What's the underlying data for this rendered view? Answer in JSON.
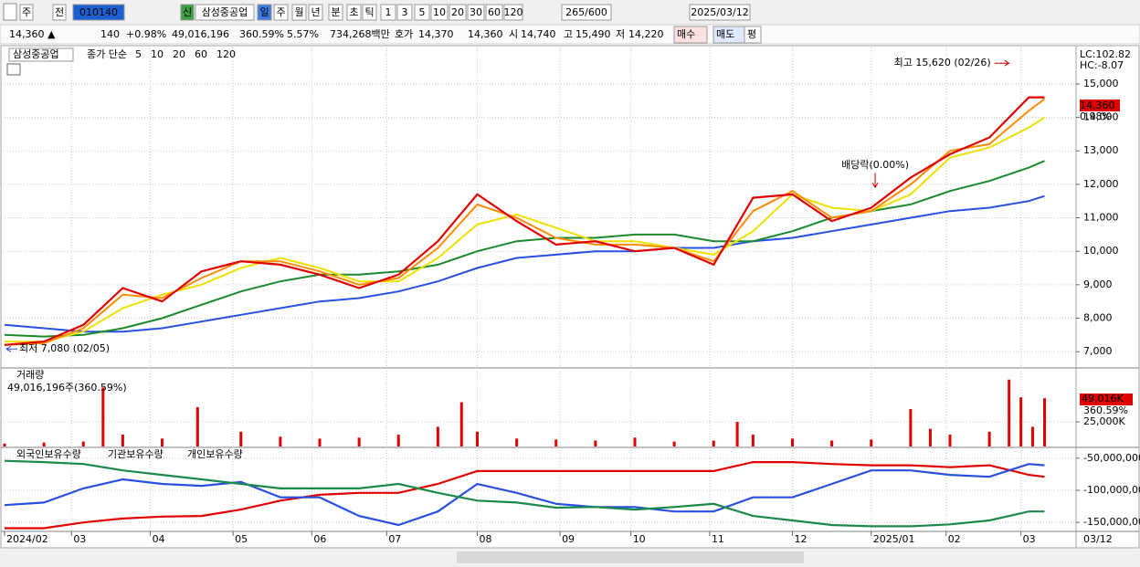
{
  "toolbar": {
    "items": [
      "주",
      "전",
      "010140",
      "신",
      "삼성중공업",
      "일",
      "주",
      "월",
      "년",
      "분",
      "초",
      "틱",
      "1",
      "3",
      "5",
      "10",
      "20",
      "30",
      "60",
      "120",
      "265/600",
      "2025/03/12"
    ]
  },
  "quote": {
    "items": [
      {
        "text": "14,360 ▲",
        "color": "#e00000"
      },
      {
        "text": "140",
        "color": "#e00000"
      },
      {
        "text": "+0.98%",
        "color": "#e00000"
      },
      {
        "text": "49,016,196",
        "color": "#000000"
      },
      {
        "text": "360.59%",
        "color": "#e00000"
      },
      {
        "text": "5.57%",
        "color": "#000000"
      },
      {
        "text": "734,268백만",
        "color": "#000000"
      },
      {
        "text": "호가",
        "color": "#000000"
      },
      {
        "text": "14,370",
        "color": "#e00000"
      },
      {
        "text": "14,360",
        "color": "#e00000"
      },
      {
        "text": "시",
        "color": "#000000"
      },
      {
        "text": "14,740",
        "color": "#e00000"
      },
      {
        "text": "고",
        "color": "#000000"
      },
      {
        "text": "15,490",
        "color": "#e00000"
      },
      {
        "text": "저",
        "color": "#000000"
      },
      {
        "text": "14,220",
        "color": "#000000"
      }
    ],
    "buttons": [
      "매수",
      "매도",
      "평"
    ]
  },
  "chart_data": [
    {
      "type": "line",
      "title": "삼성중공업",
      "legend_prefix": "종가 단순",
      "xlim": [
        0,
        272
      ],
      "ylim": [
        6540,
        16090
      ],
      "yticks": [
        {
          "value": 7000,
          "label": "7,000"
        },
        {
          "value": 8000,
          "label": "8,000"
        },
        {
          "value": 9000,
          "label": "9,000"
        },
        {
          "value": 10000,
          "label": "10,000"
        },
        {
          "value": 11000,
          "label": "11,000"
        },
        {
          "value": 12000,
          "label": "12,000"
        },
        {
          "value": 13000,
          "label": "13,000"
        },
        {
          "value": 14000,
          "label": "14,000"
        },
        {
          "value": 15000,
          "label": "15,000"
        }
      ],
      "x": [
        0,
        10,
        20,
        30,
        40,
        50,
        60,
        70,
        80,
        90,
        100,
        110,
        120,
        130,
        140,
        150,
        160,
        170,
        180,
        190,
        200,
        210,
        220,
        230,
        240,
        250,
        260,
        264
      ],
      "series": [
        {
          "name": "5",
          "color": "#e00000",
          "values": [
            7200,
            7300,
            7800,
            8900,
            8500,
            9400,
            9700,
            9600,
            9300,
            8900,
            9300,
            10300,
            11700,
            10900,
            10200,
            10300,
            10000,
            10100,
            9600,
            11600,
            11700,
            10900,
            11300,
            12200,
            12900,
            13400,
            14600,
            14600
          ]
        },
        {
          "name": "10",
          "color": "#ff8c00",
          "values": [
            7200,
            7250,
            7700,
            8700,
            8600,
            9200,
            9700,
            9700,
            9400,
            9000,
            9200,
            10100,
            11400,
            11000,
            10400,
            10200,
            10200,
            10100,
            9700,
            11200,
            11800,
            11000,
            11200,
            12000,
            13000,
            13200,
            14200,
            14550
          ]
        },
        {
          "name": "20",
          "color": "#f0e000",
          "values": [
            7300,
            7300,
            7600,
            8300,
            8700,
            9000,
            9500,
            9800,
            9500,
            9100,
            9100,
            9800,
            10800,
            11100,
            10700,
            10300,
            10300,
            10100,
            9900,
            10600,
            11700,
            11300,
            11200,
            11700,
            12800,
            13100,
            13700,
            14000
          ]
        },
        {
          "name": "60",
          "color": "#1a8a2a",
          "values": [
            7500,
            7450,
            7500,
            7700,
            8000,
            8400,
            8800,
            9100,
            9300,
            9300,
            9400,
            9600,
            10000,
            10300,
            10400,
            10400,
            10500,
            10500,
            10300,
            10300,
            10600,
            11000,
            11200,
            11400,
            11800,
            12100,
            12500,
            12700
          ]
        },
        {
          "name": "120",
          "color": "#2850e0",
          "values": [
            7800,
            7700,
            7600,
            7600,
            7700,
            7900,
            8100,
            8300,
            8500,
            8600,
            8800,
            9100,
            9500,
            9800,
            9900,
            10000,
            10000,
            10100,
            10100,
            10300,
            10400,
            10600,
            10800,
            11000,
            11200,
            11300,
            11500,
            11650
          ]
        }
      ],
      "annotations": [
        {
          "text": "최고 15,620 (02/26)",
          "x": 255,
          "y": 15620
        },
        {
          "text": "최저 7,080 (02/05)",
          "x": 0,
          "y": 7080
        },
        {
          "text": "배당락(0.00%)",
          "x": 221,
          "y": 11800
        }
      ],
      "side_labels": [
        "LC:102.82",
        "HC:-8.07",
        "14,360",
        "0.98%"
      ]
    },
    {
      "type": "bar",
      "title": "거래량",
      "subtitle": "49,016,196주(360.59%)",
      "color": "#e00000",
      "xlim": [
        0,
        272
      ],
      "ylim": [
        0,
        78000
      ],
      "yticks": [
        {
          "value": 25000,
          "label": "25,000K"
        }
      ],
      "x": [
        0,
        10,
        20,
        25,
        30,
        40,
        49,
        60,
        70,
        80,
        90,
        100,
        110,
        116,
        120,
        130,
        140,
        150,
        160,
        170,
        180,
        186,
        190,
        200,
        210,
        220,
        230,
        235,
        240,
        250,
        255,
        258,
        261,
        264
      ],
      "values": [
        3000,
        4000,
        5000,
        60000,
        12000,
        8000,
        40000,
        15000,
        10000,
        8000,
        9000,
        12000,
        20000,
        45000,
        15000,
        8000,
        7000,
        6000,
        9000,
        5000,
        6000,
        25000,
        12000,
        8000,
        6000,
        7000,
        38000,
        18000,
        12000,
        15000,
        68000,
        50000,
        20000,
        49016
      ],
      "side_labels": [
        "49,016K",
        "360.59%"
      ]
    },
    {
      "type": "line",
      "xlim": [
        0,
        272
      ],
      "ylim": [
        -164000000,
        -36000000
      ],
      "yticks": [
        {
          "value": -50000000,
          "label": "-50,000,000"
        },
        {
          "value": -100000000,
          "label": "-100,000,000"
        },
        {
          "value": -150000000,
          "label": "-150,000,000"
        }
      ],
      "x": [
        0,
        10,
        20,
        30,
        40,
        50,
        60,
        70,
        80,
        90,
        100,
        110,
        120,
        130,
        140,
        150,
        160,
        170,
        180,
        190,
        200,
        210,
        220,
        230,
        240,
        250,
        260,
        264
      ],
      "series": [
        {
          "name": "외국인보유수량",
          "color": "#e00000",
          "values": [
            -159000000,
            -159000000,
            -150000000,
            -144000000,
            -141000000,
            -140000000,
            -130000000,
            -116000000,
            -107000000,
            -104000000,
            -104000000,
            -90000000,
            -70000000,
            -70000000,
            -70000000,
            -70000000,
            -70000000,
            -70000000,
            -70000000,
            -56000000,
            -56000000,
            -59000000,
            -61000000,
            -61000000,
            -64000000,
            -61000000,
            -76000000,
            -79000000
          ]
        },
        {
          "name": "기관보유수량",
          "color": "#2850e0",
          "values": [
            -123000000,
            -119000000,
            -97000000,
            -83000000,
            -90000000,
            -93000000,
            -87000000,
            -111000000,
            -111000000,
            -140000000,
            -154000000,
            -133000000,
            -90000000,
            -104000000,
            -121000000,
            -126000000,
            -126000000,
            -133000000,
            -133000000,
            -111000000,
            -111000000,
            -90000000,
            -69000000,
            -69000000,
            -76000000,
            -79000000,
            -59000000,
            -61000000
          ]
        },
        {
          "name": "개인보유수량",
          "color": "#1a8a4a",
          "values": [
            -54000000,
            -56000000,
            -59000000,
            -69000000,
            -76000000,
            -83000000,
            -90000000,
            -97000000,
            -97000000,
            -97000000,
            -90000000,
            -104000000,
            -116000000,
            -119000000,
            -127000000,
            -126000000,
            -130000000,
            -126000000,
            -121000000,
            -140000000,
            -147000000,
            -154000000,
            -156000000,
            -156000000,
            -153000000,
            -147000000,
            -133000000,
            -133000000
          ]
        }
      ],
      "xticks": [
        {
          "value": 0,
          "label": "2024/02"
        },
        {
          "value": 17,
          "label": "03"
        },
        {
          "value": 37,
          "label": "04"
        },
        {
          "value": 58,
          "label": "05"
        },
        {
          "value": 78,
          "label": "06"
        },
        {
          "value": 97,
          "label": "07"
        },
        {
          "value": 120,
          "label": "08"
        },
        {
          "value": 141,
          "label": "09"
        },
        {
          "value": 159,
          "label": "10"
        },
        {
          "value": 179,
          "label": "11"
        },
        {
          "value": 200,
          "label": "12"
        },
        {
          "value": 220,
          "label": "2025/01"
        },
        {
          "value": 239,
          "label": "02"
        },
        {
          "value": 258,
          "label": "03"
        }
      ],
      "x_end_label": "03/12"
    }
  ]
}
